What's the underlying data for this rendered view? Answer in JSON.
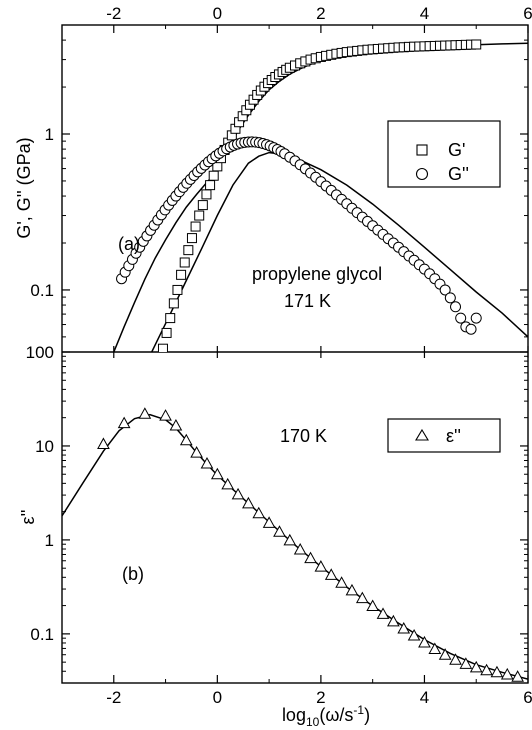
{
  "chart_data": [
    {
      "type": "scatter",
      "panel": "(a)",
      "annotations": [
        "propylene glycol",
        "171 K"
      ],
      "ylabel": "G', G'' (GPa)",
      "xlim": [
        -3,
        6
      ],
      "ylim": [
        0.04,
        5.0
      ],
      "yscale": "log",
      "yticks": [
        0.1,
        1
      ],
      "ytick_labels": [
        "0.1",
        "1"
      ],
      "xticks": [
        -2,
        0,
        2,
        4,
        6
      ],
      "xtick_labels": [
        "-2",
        "0",
        "2",
        "4",
        "6"
      ],
      "legend_position": "top-right",
      "series": [
        {
          "name": "G'",
          "marker": "square",
          "x": [
            -1.05,
            -0.98,
            -0.91,
            -0.84,
            -0.77,
            -0.7,
            -0.63,
            -0.56,
            -0.49,
            -0.42,
            -0.35,
            -0.28,
            -0.21,
            -0.14,
            -0.07,
            0.0,
            0.07,
            0.14,
            0.21,
            0.28,
            0.35,
            0.42,
            0.49,
            0.56,
            0.63,
            0.7,
            0.77,
            0.84,
            0.91,
            0.98,
            1.05,
            1.12,
            1.19,
            1.26,
            1.33,
            1.4,
            1.5,
            1.6,
            1.7,
            1.8,
            1.9,
            2.0,
            2.1,
            2.2,
            2.3,
            2.4,
            2.5,
            2.6,
            2.7,
            2.8,
            2.9,
            3.0,
            3.1,
            3.2,
            3.3,
            3.4,
            3.5,
            3.6,
            3.7,
            3.8,
            3.9,
            4.0,
            4.1,
            4.2,
            4.3,
            4.4,
            4.5,
            4.6,
            4.7,
            4.8,
            4.9,
            5.0
          ],
          "y": [
            0.042,
            0.053,
            0.066,
            0.082,
            0.1,
            0.125,
            0.15,
            0.18,
            0.215,
            0.255,
            0.3,
            0.35,
            0.41,
            0.47,
            0.54,
            0.62,
            0.7,
            0.79,
            0.88,
            0.98,
            1.08,
            1.19,
            1.3,
            1.42,
            1.54,
            1.66,
            1.78,
            1.9,
            2.01,
            2.12,
            2.22,
            2.32,
            2.41,
            2.5,
            2.58,
            2.66,
            2.75,
            2.84,
            2.92,
            3.0,
            3.06,
            3.12,
            3.17,
            3.22,
            3.27,
            3.31,
            3.35,
            3.38,
            3.41,
            3.44,
            3.47,
            3.49,
            3.51,
            3.53,
            3.55,
            3.57,
            3.59,
            3.6,
            3.62,
            3.63,
            3.64,
            3.65,
            3.66,
            3.67,
            3.68,
            3.69,
            3.7,
            3.71,
            3.72,
            3.73,
            3.74,
            3.75
          ]
        },
        {
          "name": "G''",
          "marker": "circle",
          "x": [
            -1.85,
            -1.78,
            -1.71,
            -1.64,
            -1.57,
            -1.5,
            -1.43,
            -1.36,
            -1.29,
            -1.22,
            -1.15,
            -1.08,
            -1.01,
            -0.94,
            -0.87,
            -0.8,
            -0.73,
            -0.66,
            -0.59,
            -0.52,
            -0.45,
            -0.38,
            -0.31,
            -0.24,
            -0.17,
            -0.1,
            -0.03,
            0.04,
            0.11,
            0.18,
            0.25,
            0.32,
            0.39,
            0.46,
            0.53,
            0.6,
            0.67,
            0.74,
            0.81,
            0.88,
            0.95,
            1.02,
            1.09,
            1.16,
            1.23,
            1.3,
            1.4,
            1.5,
            1.6,
            1.7,
            1.8,
            1.9,
            2.0,
            2.1,
            2.2,
            2.3,
            2.4,
            2.5,
            2.6,
            2.7,
            2.8,
            2.9,
            3.0,
            3.1,
            3.2,
            3.3,
            3.4,
            3.5,
            3.6,
            3.7,
            3.8,
            3.9,
            4.0,
            4.1,
            4.2,
            4.3,
            4.4,
            4.5,
            4.6,
            4.7,
            4.8,
            4.9,
            5.0
          ],
          "y": [
            0.118,
            0.13,
            0.143,
            0.157,
            0.172,
            0.188,
            0.205,
            0.222,
            0.241,
            0.26,
            0.281,
            0.303,
            0.326,
            0.35,
            0.375,
            0.4,
            0.427,
            0.455,
            0.483,
            0.512,
            0.542,
            0.572,
            0.602,
            0.633,
            0.664,
            0.694,
            0.724,
            0.752,
            0.779,
            0.804,
            0.826,
            0.846,
            0.862,
            0.875,
            0.884,
            0.889,
            0.89,
            0.887,
            0.88,
            0.869,
            0.855,
            0.838,
            0.818,
            0.796,
            0.772,
            0.747,
            0.71,
            0.672,
            0.635,
            0.598,
            0.562,
            0.528,
            0.495,
            0.464,
            0.435,
            0.407,
            0.381,
            0.357,
            0.334,
            0.313,
            0.293,
            0.275,
            0.258,
            0.242,
            0.227,
            0.213,
            0.2,
            0.188,
            0.176,
            0.165,
            0.155,
            0.145,
            0.136,
            0.127,
            0.118,
            0.109,
            0.1,
            0.089,
            0.078,
            0.066,
            0.058,
            0.056,
            0.066
          ]
        }
      ],
      "fit_curves": [
        {
          "x": [
            -3.0,
            -2.5,
            -2.0,
            -1.8,
            -1.6,
            -1.4,
            -1.2,
            -1.0,
            -0.8,
            -0.6,
            -0.4,
            -0.2,
            0.0,
            0.2,
            0.4,
            0.6,
            0.8,
            1.0,
            1.2,
            1.4,
            1.6,
            1.8,
            2.0,
            2.3,
            2.6,
            3.0,
            3.5,
            4.0,
            4.5,
            5.0,
            5.5,
            6.0
          ],
          "y": [
            0.003,
            0.013,
            0.04,
            0.058,
            0.083,
            0.117,
            0.16,
            0.21,
            0.27,
            0.34,
            0.41,
            0.49,
            0.58,
            0.8,
            1.05,
            1.32,
            1.62,
            1.92,
            2.18,
            2.42,
            2.62,
            2.8,
            2.95,
            3.13,
            3.28,
            3.42,
            3.54,
            3.63,
            3.69,
            3.74,
            3.78,
            3.82
          ]
        },
        {
          "x": [
            -3.0,
            -2.6,
            -2.2,
            -1.9,
            -1.7,
            -1.5,
            -1.3,
            -1.1,
            -0.9,
            -0.6,
            -0.3,
            0.0,
            0.3,
            0.6,
            0.8,
            1.0,
            1.3,
            1.6,
            2.0,
            2.5,
            3.0,
            3.5,
            4.0,
            4.5,
            5.0,
            5.5,
            6.0
          ],
          "y": [
            0.0003,
            0.002,
            0.006,
            0.012,
            0.019,
            0.028,
            0.038,
            0.052,
            0.071,
            0.115,
            0.185,
            0.3,
            0.47,
            0.65,
            0.72,
            0.76,
            0.74,
            0.68,
            0.59,
            0.47,
            0.355,
            0.26,
            0.188,
            0.135,
            0.097,
            0.071,
            0.05
          ]
        }
      ]
    },
    {
      "type": "scatter",
      "panel": "(b)",
      "annotations": [
        "170 K"
      ],
      "ylabel": "ε''",
      "xlabel": "log10(ω/s-1)",
      "xlim": [
        -3,
        6
      ],
      "ylim": [
        0.03,
        100
      ],
      "yscale": "log",
      "yticks": [
        0.1,
        1,
        10,
        100
      ],
      "ytick_labels": [
        "0.1",
        "1",
        "10",
        "100"
      ],
      "xticks": [
        -2,
        0,
        2,
        4,
        6
      ],
      "xtick_labels": [
        "-2",
        "0",
        "2",
        "4",
        "6"
      ],
      "legend_position": "top-right",
      "series": [
        {
          "name": "ε''",
          "marker": "triangle",
          "x": [
            -2.2,
            -1.8,
            -1.4,
            -1.0,
            -0.8,
            -0.6,
            -0.4,
            -0.2,
            0.0,
            0.2,
            0.4,
            0.6,
            0.8,
            1.0,
            1.2,
            1.4,
            1.6,
            1.8,
            2.0,
            2.2,
            2.4,
            2.6,
            2.8,
            3.0,
            3.2,
            3.4,
            3.6,
            3.8,
            4.0,
            4.2,
            4.4,
            4.6,
            4.8,
            5.0,
            5.2,
            5.4,
            5.6,
            5.8
          ],
          "y": [
            10.5,
            17.5,
            22.0,
            21.0,
            16.5,
            11.5,
            8.5,
            6.5,
            5.0,
            3.9,
            3.05,
            2.45,
            1.92,
            1.52,
            1.22,
            0.99,
            0.79,
            0.64,
            0.52,
            0.425,
            0.35,
            0.29,
            0.24,
            0.198,
            0.163,
            0.136,
            0.114,
            0.096,
            0.081,
            0.069,
            0.06,
            0.053,
            0.048,
            0.044,
            0.041,
            0.039,
            0.037,
            0.035
          ]
        }
      ],
      "fit_curves": [
        {
          "x": [
            -3.0,
            -2.6,
            -2.2,
            -1.9,
            -1.6,
            -1.3,
            -1.0,
            -0.8,
            -0.6,
            -0.4,
            -0.2,
            0.0,
            0.3,
            0.6,
            1.0,
            1.5,
            2.0,
            2.5,
            3.0,
            3.5,
            4.0,
            4.5,
            5.0,
            5.5,
            6.0
          ],
          "y": [
            1.8,
            4.0,
            8.8,
            14.5,
            19.5,
            21.5,
            19.0,
            15.5,
            11.5,
            8.5,
            6.4,
            4.9,
            3.45,
            2.45,
            1.55,
            0.88,
            0.52,
            0.315,
            0.198,
            0.13,
            0.087,
            0.062,
            0.047,
            0.039,
            0.033
          ]
        }
      ]
    }
  ],
  "labels": {
    "panel_a": "(a)",
    "panel_b": "(b)",
    "sample": "propylene glycol",
    "temp_a": "171 K",
    "temp_b": "170 K",
    "ylabel_a": "G', G'' (GPa)",
    "ylabel_b": "ε''",
    "xlabel_prefix": "log",
    "xlabel_sub": "10",
    "xlabel_mid": "(ω/s",
    "xlabel_sup": "-1",
    "xlabel_end": ")",
    "legend_a_1": "G'",
    "legend_a_2": "G''",
    "legend_b_1": "ε''"
  }
}
